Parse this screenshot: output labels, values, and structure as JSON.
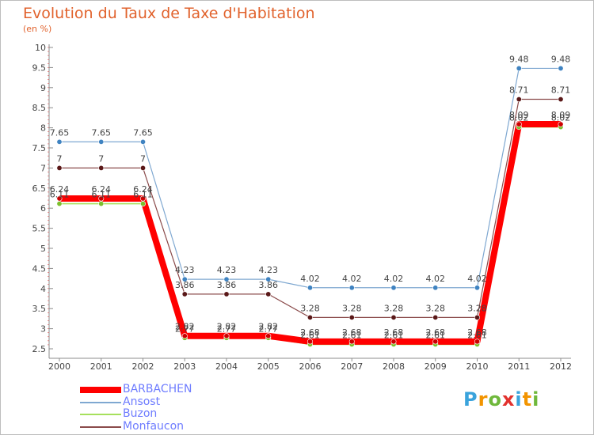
{
  "header": {
    "title": "Evolution du Taux de Taxe d'Habitation",
    "subtitle": "(en %)"
  },
  "brand": {
    "letters": [
      "P",
      "r",
      "o",
      "x",
      "i",
      "t",
      "i"
    ],
    "colors": [
      "#3aa3dc",
      "#f29400",
      "#6fb83b",
      "#e2312d",
      "#3aa3dc",
      "#f29400",
      "#6fb83b"
    ]
  },
  "chart_data": {
    "type": "line",
    "title": "Evolution du Taux de Taxe d'Habitation",
    "subtitle": "(en %)",
    "x": [
      "2000",
      "2001",
      "2002",
      "2003",
      "2004",
      "2005",
      "2006",
      "2007",
      "2008",
      "2009",
      "2010",
      "2011",
      "2012"
    ],
    "ylim": [
      2.5,
      10
    ],
    "yticks": [
      "2.5",
      "3",
      "3.5",
      "4",
      "4.5",
      "5",
      "5.5",
      "6",
      "6.5",
      "7",
      "7.5",
      "8",
      "8.5",
      "9",
      "9.5",
      "10"
    ],
    "grid": false,
    "legend_position": "bottom-left",
    "series": [
      {
        "name": "Ansost",
        "color": "#7fa8d1",
        "marker": "#3f83c1",
        "values": [
          7.65,
          7.65,
          7.65,
          4.23,
          4.23,
          4.23,
          4.02,
          4.02,
          4.02,
          4.02,
          4.02,
          9.48,
          9.48
        ],
        "labels": [
          "7.65",
          "7.65",
          "7.65",
          "4.23",
          "4.23",
          "4.23",
          "4.02",
          "4.02",
          "4.02",
          "4.02",
          "4.02",
          "9.48",
          "9.48"
        ]
      },
      {
        "name": "Monfaucon",
        "color": "#8a4a4a",
        "marker": "#5a1818",
        "values": [
          7,
          7,
          7,
          3.86,
          3.86,
          3.86,
          3.28,
          3.28,
          3.28,
          3.28,
          3.28,
          8.71,
          8.71
        ],
        "labels": [
          "7",
          "7",
          "7",
          "3.86",
          "3.86",
          "3.86",
          "3.28",
          "3.28",
          "3.28",
          "3.28",
          "3.28",
          "8.71",
          "8.71"
        ]
      },
      {
        "name": "BARBACHEN",
        "color": "#ff0000",
        "marker": "#cc0000",
        "values": [
          6.24,
          6.24,
          6.24,
          2.82,
          2.82,
          2.82,
          2.68,
          2.68,
          2.68,
          2.68,
          2.68,
          8.09,
          8.09
        ],
        "labels": [
          "6.24",
          "6.24",
          "6.24",
          "2.82",
          "2.82",
          "2.82",
          "2.68",
          "2.68",
          "2.68",
          "2.68",
          "2.68",
          "8.09",
          "8.09"
        ]
      },
      {
        "name": "Buzon",
        "color": "#a6e05c",
        "marker": "#7cbf2c",
        "values": [
          6.11,
          6.11,
          6.11,
          2.77,
          2.77,
          2.77,
          2.61,
          2.61,
          2.61,
          2.61,
          2.61,
          8.02,
          8.02
        ],
        "labels": [
          "6.11",
          "6.11",
          "6.11",
          "2.77",
          "2.77",
          "2.77",
          "2.61",
          "2.61",
          "2.61",
          "2.61",
          "2.61",
          "8.02",
          "8.02"
        ]
      }
    ],
    "legend": [
      "BARBACHEN",
      "Ansost",
      "Buzon",
      "Monfaucon"
    ]
  }
}
